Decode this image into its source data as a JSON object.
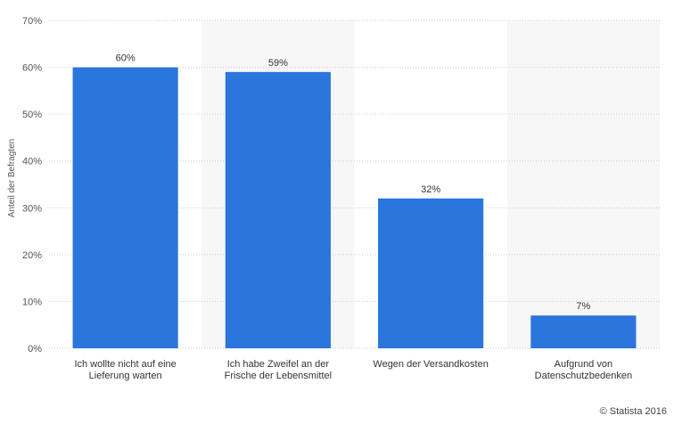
{
  "chart_data": {
    "type": "bar",
    "categories": [
      [
        "Ich wollte nicht auf eine",
        "Lieferung warten"
      ],
      [
        "Ich habe Zweifel an der",
        "Frische der Lebensmittel"
      ],
      [
        "Wegen der Versandkosten"
      ],
      [
        "Aufgrund von",
        "Datenschutzbedenken"
      ]
    ],
    "values": [
      60,
      59,
      32,
      7
    ],
    "data_labels": [
      "60%",
      "59%",
      "32%",
      "7%"
    ],
    "ylabel": "Anteil der Befragten",
    "xlabel": "",
    "ylim": [
      0,
      70
    ],
    "yticks": [
      0,
      10,
      20,
      30,
      40,
      50,
      60,
      70
    ],
    "ytick_suffix": "%",
    "grid": true,
    "alternating_bands": true,
    "colors": {
      "bar": "#2a76dd",
      "band": "#f7f7f7",
      "grid": "#cccccc"
    }
  },
  "credit": "© Statista 2016"
}
